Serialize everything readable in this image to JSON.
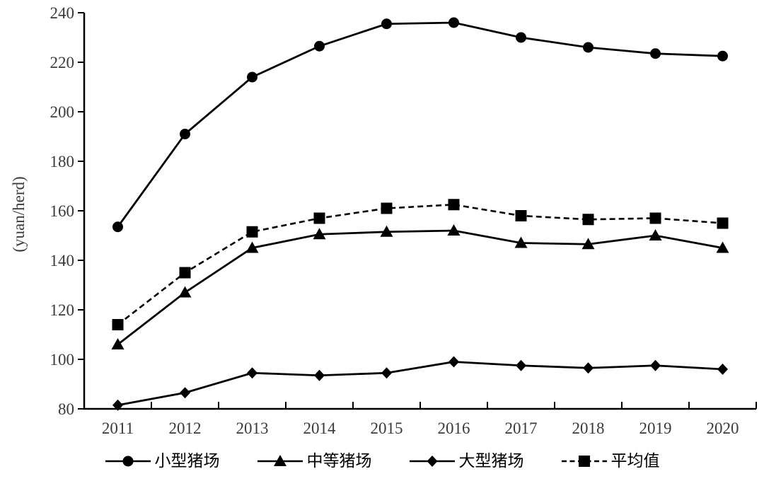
{
  "chart_data": {
    "type": "line",
    "title": "",
    "xlabel": "",
    "ylabel": "(yuan/herd)",
    "ylim": [
      80,
      240
    ],
    "ytick_step": 20,
    "grid": false,
    "legend_position": "bottom",
    "categories": [
      "2011",
      "2012",
      "2013",
      "2014",
      "2015",
      "2016",
      "2017",
      "2018",
      "2019",
      "2020"
    ],
    "yticks": [
      "80",
      "100",
      "120",
      "140",
      "160",
      "180",
      "200",
      "220",
      "240"
    ],
    "series": [
      {
        "id": "small-farm",
        "name": "小型猪场",
        "marker": "circle",
        "line": "solid",
        "values": [
          153.5,
          191,
          214,
          226.5,
          235.5,
          236,
          230,
          226,
          223.5,
          222.5
        ]
      },
      {
        "id": "medium-farm",
        "name": "中等猪场",
        "marker": "triangle",
        "line": "solid",
        "values": [
          106,
          127,
          145,
          150.5,
          151.5,
          152,
          147,
          146.5,
          150,
          145
        ]
      },
      {
        "id": "large-farm",
        "name": "大型猪场",
        "marker": "diamond",
        "line": "solid",
        "values": [
          81.5,
          86.5,
          94.5,
          93.5,
          94.5,
          99,
          97.5,
          96.5,
          97.5,
          96
        ]
      },
      {
        "id": "average",
        "name": "平均值",
        "marker": "square",
        "line": "dashed",
        "values": [
          114,
          135,
          151.5,
          157,
          161,
          162.5,
          158,
          156.5,
          157,
          155
        ]
      }
    ]
  },
  "colors": {
    "line": "#000000",
    "axis": "#000000",
    "tick_label": "#3a3a3a",
    "background": "#ffffff"
  }
}
